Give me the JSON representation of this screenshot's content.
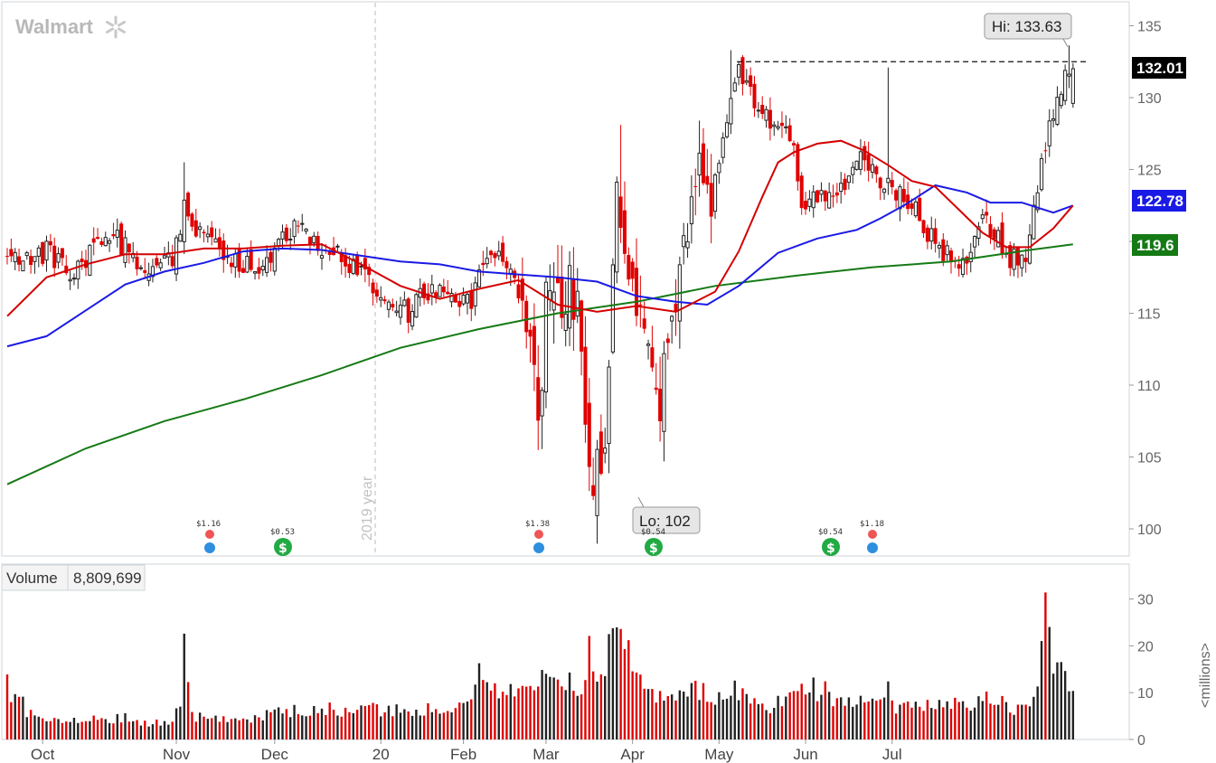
{
  "brand": {
    "name": "Walmart"
  },
  "chart_data": {
    "type": "candlestick",
    "symbol": "Walmart",
    "price_axis": {
      "min": 100,
      "max": 135,
      "ticks": [
        100,
        105,
        110,
        115,
        120,
        125,
        130,
        135
      ]
    },
    "volume_axis": {
      "unit_label": "<millions>",
      "ticks": [
        0,
        10,
        20,
        30
      ]
    },
    "x_labels": [
      "Oct",
      "Nov",
      "Dec",
      "20",
      "Feb",
      "Mar",
      "Apr",
      "May",
      "Jun",
      "Jul"
    ],
    "year_divider_label": "2019 year",
    "last_price": "132.01",
    "ma_values": {
      "blue": "122.78",
      "green": "119.6"
    },
    "hi_label": "Hi: 133.63",
    "lo_label": "Lo: 102",
    "hi_value": 133.63,
    "lo_value": 102,
    "resistance_level": 132.5,
    "volume_label": "Volume",
    "volume_value": "8,809,699",
    "dividend_labels": [
      "$1.16",
      "$1.38",
      "$1.18"
    ],
    "earnings_labels": [
      "$0.53",
      "$0.54",
      "$0.54"
    ],
    "colors": {
      "up": "#222222",
      "down": "#e00000",
      "ma_red": "#d40000",
      "ma_blue": "#1a1ae6",
      "ma_green": "#157a15",
      "last_badge": "#000000",
      "blue_badge": "#1a1ae6",
      "green_badge": "#157a15"
    },
    "anchors": [
      [
        0,
        118.6
      ],
      [
        5,
        118.9
      ],
      [
        10,
        119.3
      ],
      [
        14,
        118.3
      ],
      [
        18,
        117.9
      ],
      [
        22,
        119.8
      ],
      [
        26,
        120.6
      ],
      [
        30,
        119.5
      ],
      [
        34,
        118.6
      ],
      [
        38,
        117.8
      ],
      [
        42,
        118.9
      ],
      [
        45,
        122.2
      ],
      [
        46,
        121.2
      ],
      [
        48,
        120.7
      ],
      [
        52,
        119.6
      ],
      [
        56,
        119.1
      ],
      [
        60,
        118.5
      ],
      [
        64,
        118.3
      ],
      [
        68,
        119.6
      ],
      [
        72,
        120.9
      ],
      [
        76,
        120.3
      ],
      [
        80,
        119.6
      ],
      [
        83,
        119.2
      ],
      [
        86,
        118.7
      ],
      [
        90,
        117.6
      ],
      [
        94,
        116.2
      ],
      [
        98,
        115.3
      ],
      [
        102,
        115.1
      ],
      [
        106,
        116.5
      ],
      [
        110,
        116.9
      ],
      [
        114,
        116.2
      ],
      [
        118,
        115.6
      ],
      [
        120,
        117.3
      ],
      [
        123,
        119.6
      ],
      [
        127,
        118.2
      ],
      [
        130,
        116.5
      ],
      [
        133,
        112.8
      ],
      [
        135,
        107.1
      ],
      [
        137,
        115.3
      ],
      [
        139,
        114.6
      ],
      [
        143,
        117.3
      ],
      [
        145,
        115.9
      ],
      [
        147,
        108.7
      ],
      [
        149,
        102.5
      ],
      [
        152,
        106.1
      ],
      [
        155,
        125.3
      ],
      [
        158,
        115.3
      ],
      [
        161,
        116.2
      ],
      [
        163,
        112.2
      ],
      [
        166,
        109.3
      ],
      [
        170,
        114.9
      ],
      [
        173,
        120.2
      ],
      [
        176,
        125.6
      ],
      [
        179,
        122.2
      ],
      [
        181,
        125.8
      ],
      [
        184,
        130.2
      ],
      [
        186,
        132.2
      ],
      [
        188,
        131.1
      ],
      [
        190,
        129.6
      ],
      [
        194,
        128.6
      ],
      [
        197,
        128.3
      ],
      [
        200,
        126.4
      ],
      [
        202,
        122.6
      ],
      [
        205,
        123.4
      ],
      [
        208,
        123.4
      ],
      [
        211,
        122.8
      ],
      [
        214,
        124.6
      ],
      [
        216,
        126.1
      ],
      [
        218,
        124.9
      ],
      [
        221,
        124.8
      ],
      [
        224,
        123.6
      ],
      [
        227,
        123.2
      ],
      [
        230,
        122.7
      ],
      [
        233,
        121.1
      ],
      [
        236,
        119.8
      ],
      [
        239,
        118.9
      ],
      [
        242,
        118.3
      ],
      [
        245,
        118.8
      ],
      [
        248,
        121.1
      ],
      [
        251,
        120.9
      ],
      [
        254,
        118.8
      ],
      [
        257,
        118.9
      ],
      [
        259,
        119.2
      ],
      [
        261,
        121.8
      ],
      [
        263,
        126.0
      ],
      [
        265,
        127.8
      ],
      [
        267,
        130.4
      ],
      [
        269,
        131.3
      ],
      [
        271,
        130.6
      ]
    ],
    "ma_red_pts": [
      [
        0,
        114.8
      ],
      [
        10,
        117.5
      ],
      [
        20,
        118.4
      ],
      [
        30,
        119.1
      ],
      [
        40,
        119.1
      ],
      [
        50,
        119.5
      ],
      [
        60,
        119.5
      ],
      [
        70,
        119.7
      ],
      [
        80,
        119.8
      ],
      [
        90,
        118.4
      ],
      [
        100,
        116.9
      ],
      [
        110,
        116.0
      ],
      [
        120,
        116.7
      ],
      [
        130,
        117.3
      ],
      [
        140,
        115.6
      ],
      [
        150,
        115.1
      ],
      [
        160,
        115.5
      ],
      [
        170,
        115.1
      ],
      [
        180,
        116.5
      ],
      [
        186,
        119.3
      ],
      [
        192,
        123.1
      ],
      [
        196,
        125.5
      ],
      [
        200,
        126.2
      ],
      [
        206,
        126.8
      ],
      [
        212,
        127.0
      ],
      [
        218,
        126.3
      ],
      [
        224,
        125.3
      ],
      [
        230,
        124.2
      ],
      [
        236,
        123.8
      ],
      [
        242,
        122.2
      ],
      [
        248,
        120.6
      ],
      [
        254,
        119.6
      ],
      [
        260,
        119.6
      ],
      [
        266,
        120.9
      ],
      [
        271,
        122.5
      ]
    ],
    "ma_blue_pts": [
      [
        0,
        112.7
      ],
      [
        10,
        113.4
      ],
      [
        20,
        115.2
      ],
      [
        30,
        117.0
      ],
      [
        40,
        117.9
      ],
      [
        50,
        118.5
      ],
      [
        60,
        119.3
      ],
      [
        70,
        119.5
      ],
      [
        80,
        119.4
      ],
      [
        90,
        119.0
      ],
      [
        100,
        118.6
      ],
      [
        110,
        118.4
      ],
      [
        120,
        117.9
      ],
      [
        130,
        117.7
      ],
      [
        140,
        117.5
      ],
      [
        150,
        117.2
      ],
      [
        160,
        116.2
      ],
      [
        170,
        115.8
      ],
      [
        178,
        115.6
      ],
      [
        186,
        116.9
      ],
      [
        196,
        119.2
      ],
      [
        206,
        120.2
      ],
      [
        216,
        120.8
      ],
      [
        222,
        121.6
      ],
      [
        228,
        122.5
      ],
      [
        236,
        123.9
      ],
      [
        244,
        123.4
      ],
      [
        250,
        122.7
      ],
      [
        258,
        122.7
      ],
      [
        266,
        122.0
      ],
      [
        271,
        122.5
      ]
    ],
    "ma_green_pts": [
      [
        0,
        103.1
      ],
      [
        20,
        105.6
      ],
      [
        40,
        107.5
      ],
      [
        60,
        109.0
      ],
      [
        80,
        110.7
      ],
      [
        100,
        112.6
      ],
      [
        120,
        113.9
      ],
      [
        140,
        115.0
      ],
      [
        160,
        115.8
      ],
      [
        180,
        116.9
      ],
      [
        200,
        117.6
      ],
      [
        220,
        118.2
      ],
      [
        240,
        118.6
      ],
      [
        260,
        119.4
      ],
      [
        271,
        119.8
      ]
    ],
    "volume_anchors": [
      [
        0,
        11.2
      ],
      [
        6,
        5.4
      ],
      [
        12,
        4.0
      ],
      [
        18,
        4.5
      ],
      [
        24,
        4.3
      ],
      [
        30,
        4.7
      ],
      [
        36,
        3.3
      ],
      [
        42,
        4.4
      ],
      [
        44,
        7.0
      ],
      [
        45,
        22.6
      ],
      [
        46,
        10.1
      ],
      [
        48,
        4.9
      ],
      [
        54,
        4.5
      ],
      [
        60,
        4.4
      ],
      [
        66,
        5.1
      ],
      [
        72,
        6.1
      ],
      [
        80,
        6.3
      ],
      [
        86,
        6.4
      ],
      [
        92,
        7.2
      ],
      [
        98,
        5.9
      ],
      [
        104,
        6.6
      ],
      [
        110,
        6.0
      ],
      [
        116,
        6.6
      ],
      [
        120,
        13.5
      ],
      [
        126,
        9.4
      ],
      [
        130,
        11.3
      ],
      [
        136,
        13.0
      ],
      [
        140,
        15.6
      ],
      [
        146,
        10.5
      ],
      [
        148,
        20.3
      ],
      [
        150,
        12.0
      ],
      [
        152,
        17.0
      ],
      [
        156,
        23.6
      ],
      [
        160,
        12.8
      ],
      [
        166,
        9.4
      ],
      [
        172,
        9.2
      ],
      [
        176,
        11.0
      ],
      [
        180,
        9.2
      ],
      [
        186,
        10.4
      ],
      [
        194,
        7.0
      ],
      [
        200,
        10.3
      ],
      [
        206,
        10.9
      ],
      [
        212,
        8.5
      ],
      [
        218,
        8.4
      ],
      [
        222,
        7.0
      ],
      [
        224,
        12.4
      ],
      [
        226,
        7.1
      ],
      [
        230,
        7.0
      ],
      [
        236,
        7.9
      ],
      [
        240,
        7.5
      ],
      [
        244,
        7.6
      ],
      [
        250,
        8.7
      ],
      [
        256,
        6.8
      ],
      [
        258,
        6.4
      ],
      [
        260,
        7.8
      ],
      [
        262,
        9.6
      ],
      [
        264,
        31.4
      ],
      [
        266,
        17.0
      ],
      [
        268,
        15.4
      ],
      [
        270,
        13.6
      ],
      [
        271,
        9.8
      ]
    ]
  }
}
